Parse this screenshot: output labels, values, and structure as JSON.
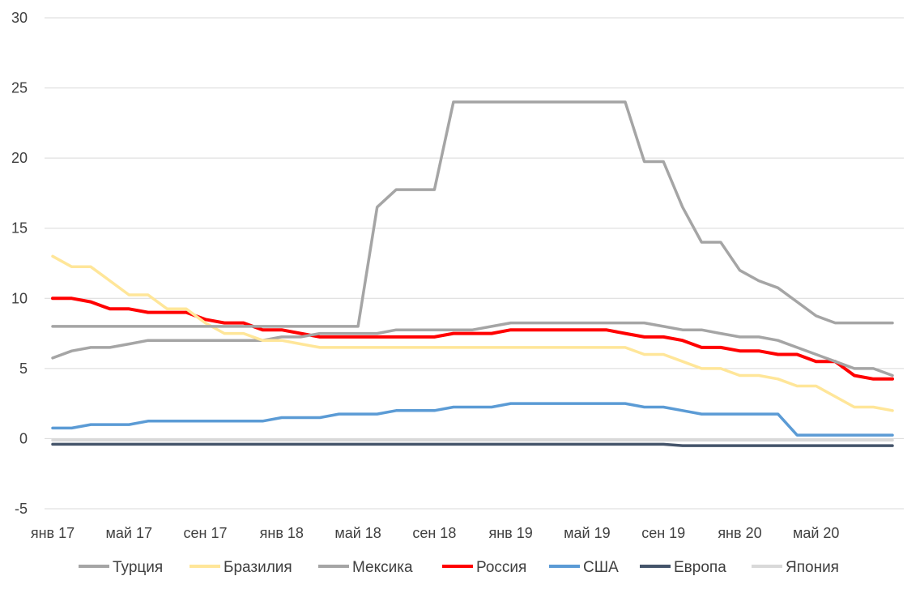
{
  "chart_data": {
    "type": "line",
    "title": "",
    "xlabel": "",
    "ylabel": "",
    "ylim": [
      -5,
      30
    ],
    "yticks": [
      -5,
      0,
      5,
      10,
      15,
      20,
      25,
      30
    ],
    "grid": true,
    "legend_position": "bottom",
    "x_tick_labels": [
      "янв 17",
      "май 17",
      "сен 17",
      "янв 18",
      "май 18",
      "сен 18",
      "янв 19",
      "май 19",
      "сен 19",
      "янв 20",
      "май 20"
    ],
    "x_tick_interval_months": 4,
    "months_count": 45,
    "series": [
      {
        "name": "Турция",
        "color": "#A5A5A5",
        "values": [
          8,
          8,
          8,
          8,
          8,
          8,
          8,
          8,
          8,
          8,
          8,
          8,
          8,
          8,
          8,
          8,
          8,
          16.5,
          17.75,
          17.75,
          17.75,
          24,
          24,
          24,
          24,
          24,
          24,
          24,
          24,
          24,
          24,
          19.75,
          19.75,
          16.5,
          14,
          14,
          12,
          11.25,
          10.75,
          9.75,
          8.75,
          8.25,
          8.25,
          8.25,
          8.25
        ]
      },
      {
        "name": "Бразилия",
        "color": "#FFE699",
        "values": [
          13,
          12.25,
          12.25,
          11.25,
          10.25,
          10.25,
          9.25,
          9.25,
          8.25,
          7.5,
          7.5,
          7,
          7,
          6.75,
          6.5,
          6.5,
          6.5,
          6.5,
          6.5,
          6.5,
          6.5,
          6.5,
          6.5,
          6.5,
          6.5,
          6.5,
          6.5,
          6.5,
          6.5,
          6.5,
          6.5,
          6,
          6,
          5.5,
          5,
          5,
          4.5,
          4.5,
          4.25,
          3.75,
          3.75,
          3,
          2.25,
          2.25,
          2
        ]
      },
      {
        "name": "Мексика",
        "color": "#A5A5A5",
        "values": [
          5.75,
          6.25,
          6.5,
          6.5,
          6.75,
          7,
          7,
          7,
          7,
          7,
          7,
          7,
          7.25,
          7.25,
          7.5,
          7.5,
          7.5,
          7.5,
          7.75,
          7.75,
          7.75,
          7.75,
          7.75,
          8,
          8.25,
          8.25,
          8.25,
          8.25,
          8.25,
          8.25,
          8.25,
          8.25,
          8,
          7.75,
          7.75,
          7.5,
          7.25,
          7.25,
          7,
          6.5,
          6,
          5.5,
          5,
          5,
          4.5
        ]
      },
      {
        "name": "Россия",
        "color": "#FF0000",
        "values": [
          10,
          10,
          9.75,
          9.25,
          9.25,
          9,
          9,
          9,
          8.5,
          8.25,
          8.25,
          7.75,
          7.75,
          7.5,
          7.25,
          7.25,
          7.25,
          7.25,
          7.25,
          7.25,
          7.25,
          7.5,
          7.5,
          7.5,
          7.75,
          7.75,
          7.75,
          7.75,
          7.75,
          7.75,
          7.5,
          7.25,
          7.25,
          7,
          6.5,
          6.5,
          6.25,
          6.25,
          6,
          6,
          5.5,
          5.5,
          4.5,
          4.25,
          4.25
        ]
      },
      {
        "name": "США",
        "color": "#5B9BD5",
        "values": [
          0.75,
          0.75,
          1,
          1,
          1,
          1.25,
          1.25,
          1.25,
          1.25,
          1.25,
          1.25,
          1.25,
          1.5,
          1.5,
          1.5,
          1.75,
          1.75,
          1.75,
          2,
          2,
          2,
          2.25,
          2.25,
          2.25,
          2.5,
          2.5,
          2.5,
          2.5,
          2.5,
          2.5,
          2.5,
          2.25,
          2.25,
          2,
          1.75,
          1.75,
          1.75,
          1.75,
          1.75,
          0.25,
          0.25,
          0.25,
          0.25,
          0.25,
          0.25
        ]
      },
      {
        "name": "Европа",
        "color": "#44546A",
        "values": [
          -0.4,
          -0.4,
          -0.4,
          -0.4,
          -0.4,
          -0.4,
          -0.4,
          -0.4,
          -0.4,
          -0.4,
          -0.4,
          -0.4,
          -0.4,
          -0.4,
          -0.4,
          -0.4,
          -0.4,
          -0.4,
          -0.4,
          -0.4,
          -0.4,
          -0.4,
          -0.4,
          -0.4,
          -0.4,
          -0.4,
          -0.4,
          -0.4,
          -0.4,
          -0.4,
          -0.4,
          -0.4,
          -0.4,
          -0.5,
          -0.5,
          -0.5,
          -0.5,
          -0.5,
          -0.5,
          -0.5,
          -0.5,
          -0.5,
          -0.5,
          -0.5,
          -0.5
        ]
      },
      {
        "name": "Япония",
        "color": "#D9D9D9",
        "values": [
          -0.1,
          -0.1,
          -0.1,
          -0.1,
          -0.1,
          -0.1,
          -0.1,
          -0.1,
          -0.1,
          -0.1,
          -0.1,
          -0.1,
          -0.1,
          -0.1,
          -0.1,
          -0.1,
          -0.1,
          -0.1,
          -0.1,
          -0.1,
          -0.1,
          -0.1,
          -0.1,
          -0.1,
          -0.1,
          -0.1,
          -0.1,
          -0.1,
          -0.1,
          -0.1,
          -0.1,
          -0.1,
          -0.1,
          -0.1,
          -0.1,
          -0.1,
          -0.1,
          -0.1,
          -0.1,
          -0.1,
          -0.1,
          -0.1,
          -0.1,
          -0.1,
          -0.1
        ]
      }
    ]
  }
}
